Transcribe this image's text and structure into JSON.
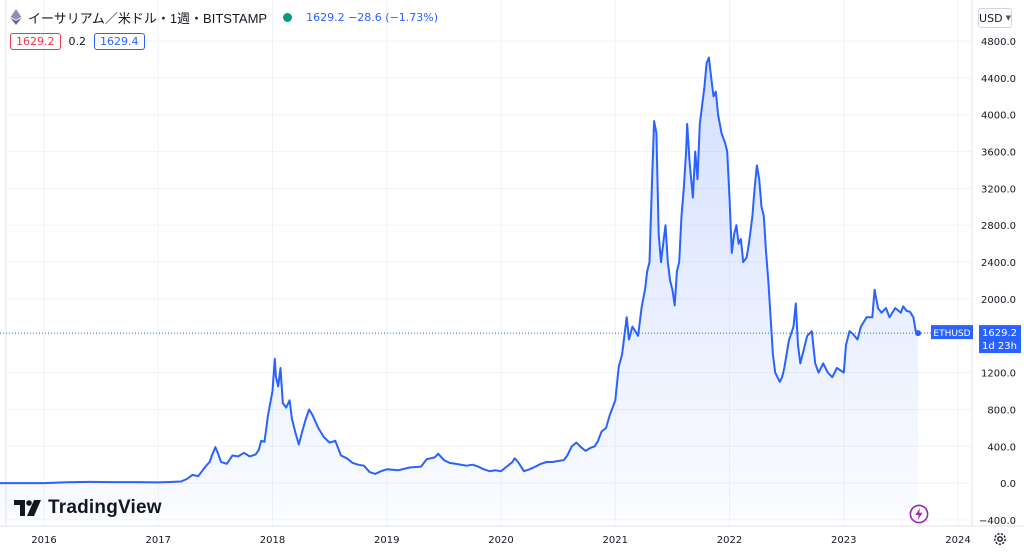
{
  "header": {
    "symbol_title": "イーサリアム／米ドル・1週・BITSTAMP",
    "price_line": "1629.2  −28.6 (−1.73%)",
    "bid": "1629.2",
    "spread": "0.2",
    "ask": "1629.4",
    "currency": "USD"
  },
  "branding": {
    "logo_text": "TradingView"
  },
  "icons": {
    "symbol": "ethereum-icon",
    "status": "market-status-dot",
    "goto": "lightning-icon",
    "settings": "gear-icon"
  },
  "colors": {
    "line": "#2962ff",
    "fill": "#2962ff",
    "bid": "#f23645",
    "ask": "#2962ff",
    "status": "#089981",
    "grid": "#f0f3fa",
    "text": "#131722"
  },
  "chart_data": {
    "type": "area",
    "series_name": "ETHUSD",
    "label_countdown": "1d 23h",
    "last_value": 1629.2,
    "ylim": [
      -400,
      4800
    ],
    "xlim": [
      2015.6,
      2024.25
    ],
    "grid": true,
    "y_ticks": [
      4800,
      4400,
      4000,
      3600,
      3200,
      2800,
      2400,
      2000,
      1200,
      800,
      400,
      0,
      -400
    ],
    "y_tick_labels": [
      "4800.0",
      "4400.0",
      "4000.0",
      "3600.0",
      "3200.0",
      "2800.0",
      "2400.0",
      "2000.0",
      "1200.0",
      "800.0",
      "400.0",
      "0.0",
      "−400.0"
    ],
    "x_ticks": [
      2016,
      2017,
      2018,
      2019,
      2020,
      2021,
      2022,
      2023,
      2024
    ],
    "x_tick_labels": [
      "2016",
      "2017",
      "2018",
      "2019",
      "2020",
      "2021",
      "2022",
      "2023",
      "2024"
    ],
    "points": [
      [
        2015.6,
        1
      ],
      [
        2015.8,
        1
      ],
      [
        2016.0,
        1
      ],
      [
        2016.2,
        10
      ],
      [
        2016.4,
        14
      ],
      [
        2016.6,
        11
      ],
      [
        2016.8,
        11
      ],
      [
        2017.0,
        8
      ],
      [
        2017.1,
        12
      ],
      [
        2017.2,
        18
      ],
      [
        2017.25,
        45
      ],
      [
        2017.3,
        90
      ],
      [
        2017.35,
        75
      ],
      [
        2017.42,
        190
      ],
      [
        2017.45,
        230
      ],
      [
        2017.47,
        300
      ],
      [
        2017.5,
        390
      ],
      [
        2017.52,
        330
      ],
      [
        2017.55,
        230
      ],
      [
        2017.6,
        210
      ],
      [
        2017.65,
        300
      ],
      [
        2017.7,
        290
      ],
      [
        2017.75,
        330
      ],
      [
        2017.8,
        290
      ],
      [
        2017.85,
        310
      ],
      [
        2017.88,
        360
      ],
      [
        2017.9,
        460
      ],
      [
        2017.93,
        450
      ],
      [
        2017.96,
        730
      ],
      [
        2018.0,
        1000
      ],
      [
        2018.02,
        1350
      ],
      [
        2018.03,
        1160
      ],
      [
        2018.05,
        1050
      ],
      [
        2018.07,
        1250
      ],
      [
        2018.09,
        870
      ],
      [
        2018.12,
        820
      ],
      [
        2018.15,
        900
      ],
      [
        2018.17,
        700
      ],
      [
        2018.2,
        550
      ],
      [
        2018.23,
        420
      ],
      [
        2018.26,
        560
      ],
      [
        2018.29,
        690
      ],
      [
        2018.32,
        800
      ],
      [
        2018.35,
        740
      ],
      [
        2018.4,
        600
      ],
      [
        2018.45,
        500
      ],
      [
        2018.5,
        440
      ],
      [
        2018.55,
        460
      ],
      [
        2018.6,
        300
      ],
      [
        2018.65,
        270
      ],
      [
        2018.7,
        220
      ],
      [
        2018.75,
        200
      ],
      [
        2018.8,
        190
      ],
      [
        2018.85,
        120
      ],
      [
        2018.9,
        100
      ],
      [
        2018.95,
        130
      ],
      [
        2019.0,
        150
      ],
      [
        2019.1,
        140
      ],
      [
        2019.2,
        170
      ],
      [
        2019.3,
        180
      ],
      [
        2019.35,
        260
      ],
      [
        2019.42,
        280
      ],
      [
        2019.45,
        320
      ],
      [
        2019.5,
        250
      ],
      [
        2019.55,
        220
      ],
      [
        2019.6,
        210
      ],
      [
        2019.7,
        190
      ],
      [
        2019.75,
        200
      ],
      [
        2019.8,
        180
      ],
      [
        2019.85,
        150
      ],
      [
        2019.9,
        130
      ],
      [
        2019.95,
        140
      ],
      [
        2020.0,
        130
      ],
      [
        2020.05,
        180
      ],
      [
        2020.1,
        230
      ],
      [
        2020.12,
        270
      ],
      [
        2020.15,
        230
      ],
      [
        2020.2,
        130
      ],
      [
        2020.25,
        150
      ],
      [
        2020.3,
        180
      ],
      [
        2020.35,
        210
      ],
      [
        2020.4,
        230
      ],
      [
        2020.45,
        230
      ],
      [
        2020.5,
        240
      ],
      [
        2020.55,
        250
      ],
      [
        2020.58,
        300
      ],
      [
        2020.62,
        400
      ],
      [
        2020.66,
        440
      ],
      [
        2020.7,
        390
      ],
      [
        2020.74,
        350
      ],
      [
        2020.78,
        380
      ],
      [
        2020.82,
        400
      ],
      [
        2020.85,
        460
      ],
      [
        2020.88,
        560
      ],
      [
        2020.92,
        600
      ],
      [
        2020.95,
        730
      ],
      [
        2021.0,
        900
      ],
      [
        2021.03,
        1260
      ],
      [
        2021.06,
        1400
      ],
      [
        2021.08,
        1600
      ],
      [
        2021.1,
        1800
      ],
      [
        2021.12,
        1560
      ],
      [
        2021.15,
        1700
      ],
      [
        2021.2,
        1600
      ],
      [
        2021.23,
        1900
      ],
      [
        2021.26,
        2100
      ],
      [
        2021.28,
        2300
      ],
      [
        2021.3,
        2400
      ],
      [
        2021.32,
        3200
      ],
      [
        2021.34,
        3930
      ],
      [
        2021.36,
        3800
      ],
      [
        2021.38,
        2700
      ],
      [
        2021.4,
        2400
      ],
      [
        2021.42,
        2600
      ],
      [
        2021.44,
        2800
      ],
      [
        2021.46,
        2400
      ],
      [
        2021.48,
        2200
      ],
      [
        2021.5,
        2100
      ],
      [
        2021.52,
        1930
      ],
      [
        2021.54,
        2300
      ],
      [
        2021.56,
        2400
      ],
      [
        2021.58,
        2900
      ],
      [
        2021.6,
        3200
      ],
      [
        2021.62,
        3600
      ],
      [
        2021.63,
        3900
      ],
      [
        2021.65,
        3500
      ],
      [
        2021.68,
        3100
      ],
      [
        2021.7,
        3600
      ],
      [
        2021.72,
        3300
      ],
      [
        2021.74,
        3900
      ],
      [
        2021.76,
        4100
      ],
      [
        2021.78,
        4300
      ],
      [
        2021.8,
        4560
      ],
      [
        2021.82,
        4620
      ],
      [
        2021.84,
        4400
      ],
      [
        2021.86,
        4200
      ],
      [
        2021.88,
        4250
      ],
      [
        2021.9,
        4000
      ],
      [
        2021.93,
        3800
      ],
      [
        2021.96,
        3700
      ],
      [
        2021.98,
        3600
      ],
      [
        2022.0,
        3100
      ],
      [
        2022.02,
        2500
      ],
      [
        2022.04,
        2700
      ],
      [
        2022.06,
        2800
      ],
      [
        2022.08,
        2600
      ],
      [
        2022.1,
        2650
      ],
      [
        2022.12,
        2400
      ],
      [
        2022.15,
        2450
      ],
      [
        2022.17,
        2600
      ],
      [
        2022.2,
        2900
      ],
      [
        2022.22,
        3200
      ],
      [
        2022.24,
        3450
      ],
      [
        2022.26,
        3300
      ],
      [
        2022.28,
        3000
      ],
      [
        2022.3,
        2900
      ],
      [
        2022.32,
        2500
      ],
      [
        2022.34,
        2200
      ],
      [
        2022.36,
        1800
      ],
      [
        2022.38,
        1400
      ],
      [
        2022.4,
        1200
      ],
      [
        2022.42,
        1150
      ],
      [
        2022.44,
        1100
      ],
      [
        2022.46,
        1150
      ],
      [
        2022.48,
        1250
      ],
      [
        2022.52,
        1550
      ],
      [
        2022.56,
        1700
      ],
      [
        2022.58,
        1950
      ],
      [
        2022.6,
        1500
      ],
      [
        2022.62,
        1300
      ],
      [
        2022.64,
        1400
      ],
      [
        2022.68,
        1600
      ],
      [
        2022.72,
        1650
      ],
      [
        2022.75,
        1300
      ],
      [
        2022.78,
        1200
      ],
      [
        2022.82,
        1300
      ],
      [
        2022.86,
        1200
      ],
      [
        2022.9,
        1150
      ],
      [
        2022.94,
        1250
      ],
      [
        2023.0,
        1200
      ],
      [
        2023.02,
        1500
      ],
      [
        2023.05,
        1650
      ],
      [
        2023.08,
        1620
      ],
      [
        2023.12,
        1560
      ],
      [
        2023.15,
        1700
      ],
      [
        2023.2,
        1800
      ],
      [
        2023.25,
        1800
      ],
      [
        2023.27,
        2100
      ],
      [
        2023.3,
        1900
      ],
      [
        2023.33,
        1850
      ],
      [
        2023.37,
        1900
      ],
      [
        2023.4,
        1800
      ],
      [
        2023.45,
        1900
      ],
      [
        2023.5,
        1850
      ],
      [
        2023.52,
        1920
      ],
      [
        2023.55,
        1870
      ],
      [
        2023.58,
        1860
      ],
      [
        2023.61,
        1800
      ],
      [
        2023.63,
        1650
      ],
      [
        2023.65,
        1629.2
      ]
    ]
  }
}
